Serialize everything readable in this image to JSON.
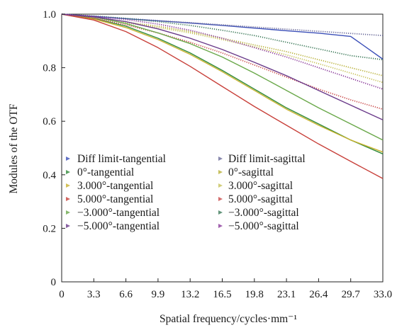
{
  "chart_data": {
    "type": "line",
    "xlabel": "Spatial frequency/cycles·mm⁻¹",
    "ylabel": "Modules of the OTF",
    "xlim": [
      0,
      33.0
    ],
    "ylim": [
      0,
      1.0
    ],
    "x_ticks": [
      "0",
      "3.3",
      "6.6",
      "9.9",
      "13.2",
      "16.5",
      "19.8",
      "23.1",
      "26.4",
      "29.7",
      "33.0"
    ],
    "y_ticks": [
      "0",
      "0.2",
      "0.4",
      "0.6",
      "0.8",
      "1.0"
    ],
    "grid": false,
    "legend_position": "lower-left",
    "x": [
      0,
      3.3,
      6.6,
      9.9,
      13.2,
      16.5,
      19.8,
      23.1,
      26.4,
      29.7,
      33.0
    ],
    "series": [
      {
        "name": "Diff limit-tangential",
        "color": "#3b4fb8",
        "dotted": false,
        "values": [
          1.0,
          0.992,
          0.983,
          0.975,
          0.967,
          0.958,
          0.948,
          0.938,
          0.929,
          0.917,
          0.832
        ]
      },
      {
        "name": "Diff limit-sagittal",
        "color": "#6a6a9a",
        "dotted": true,
        "values": [
          1.0,
          0.992,
          0.984,
          0.976,
          0.968,
          0.96,
          0.952,
          0.944,
          0.936,
          0.928,
          0.92
        ]
      },
      {
        "name": "0°-tangential",
        "color": "#2f8a3a",
        "dotted": false,
        "values": [
          1.0,
          0.985,
          0.955,
          0.91,
          0.855,
          0.79,
          0.72,
          0.65,
          0.59,
          0.53,
          0.478
        ]
      },
      {
        "name": "0°-sagittal",
        "color": "#b9b13a",
        "dotted": true,
        "values": [
          1.0,
          0.985,
          0.97,
          0.955,
          0.935,
          0.91,
          0.885,
          0.86,
          0.83,
          0.8,
          0.77
        ]
      },
      {
        "name": "3.000°-tangential",
        "color": "#c9b22e",
        "dotted": false,
        "values": [
          1.0,
          0.982,
          0.95,
          0.905,
          0.85,
          0.785,
          0.715,
          0.645,
          0.585,
          0.53,
          0.485
        ]
      },
      {
        "name": "3.000°-sagittal",
        "color": "#c7c25a",
        "dotted": true,
        "values": [
          1.0,
          0.985,
          0.968,
          0.95,
          0.93,
          0.905,
          0.878,
          0.848,
          0.815,
          0.78,
          0.745
        ]
      },
      {
        "name": "5.000°-tangential",
        "color": "#c8403a",
        "dotted": false,
        "values": [
          1.0,
          0.978,
          0.935,
          0.875,
          0.805,
          0.73,
          0.655,
          0.585,
          0.515,
          0.45,
          0.386
        ]
      },
      {
        "name": "5.000°-sagittal",
        "color": "#c94a4a",
        "dotted": true,
        "values": [
          1.0,
          0.985,
          0.96,
          0.93,
          0.895,
          0.855,
          0.81,
          0.765,
          0.72,
          0.68,
          0.645
        ]
      },
      {
        "name": "−3.000°-tangential",
        "color": "#6aa84a",
        "dotted": false,
        "values": [
          1.0,
          0.99,
          0.965,
          0.93,
          0.89,
          0.84,
          0.78,
          0.715,
          0.65,
          0.59,
          0.53
        ]
      },
      {
        "name": "−3.000°-sagittal",
        "color": "#3d7a5a",
        "dotted": true,
        "values": [
          1.0,
          0.993,
          0.984,
          0.972,
          0.958,
          0.94,
          0.92,
          0.895,
          0.87,
          0.845,
          0.83
        ]
      },
      {
        "name": "−5.000°-tangential",
        "color": "#6a3a8a",
        "dotted": false,
        "values": [
          1.0,
          0.99,
          0.972,
          0.945,
          0.91,
          0.868,
          0.82,
          0.77,
          0.715,
          0.66,
          0.605
        ]
      },
      {
        "name": "−5.000°-sagittal",
        "color": "#8a3a9a",
        "dotted": true,
        "values": [
          1.0,
          0.992,
          0.98,
          0.963,
          0.94,
          0.91,
          0.875,
          0.84,
          0.8,
          0.76,
          0.72
        ]
      }
    ],
    "legend": {
      "left": [
        "Diff limit-tangential",
        "0°-tangential",
        "3.000°-tangential",
        "5.000°-tangential",
        "−3.000°-tangential",
        "−5.000°-tangential"
      ],
      "right": [
        "Diff limit-sagittal",
        "0°-sagittal",
        "3.000°-sagittal",
        "5.000°-sagittal",
        "−3.000°-sagittal",
        "−5.000°-sagittal"
      ]
    }
  }
}
